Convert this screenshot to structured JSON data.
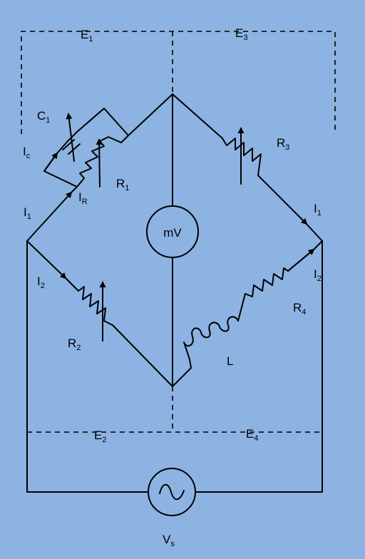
{
  "labels": {
    "E1": {
      "main": "E",
      "sub": "1"
    },
    "E2": {
      "main": "E",
      "sub": "2"
    },
    "E3": {
      "main": "E",
      "sub": "3"
    },
    "E4": {
      "main": "E",
      "sub": "4"
    },
    "C1": {
      "main": "C",
      "sub": "1"
    },
    "Ic": {
      "main": "I",
      "sub": "c"
    },
    "IR": {
      "main": "I",
      "sub": "R"
    },
    "R1": {
      "main": "R",
      "sub": "1"
    },
    "R2": {
      "main": "R",
      "sub": "2"
    },
    "R3": {
      "main": "R",
      "sub": "3"
    },
    "R4": {
      "main": "R",
      "sub": "4"
    },
    "I1_left": {
      "main": "I",
      "sub": "1"
    },
    "I2_left": {
      "main": "I",
      "sub": "2"
    },
    "I1_right": {
      "main": "I",
      "sub": "1"
    },
    "I2_right": {
      "main": "I",
      "sub": "2"
    },
    "L": {
      "main": "L",
      "sub": ""
    },
    "Vs": {
      "main": "V",
      "sub": "s"
    }
  },
  "meter": {
    "label": "mV"
  },
  "source_icon": "ac-source-icon",
  "colors": {
    "background": "#8db3e2",
    "line": "#000000"
  }
}
